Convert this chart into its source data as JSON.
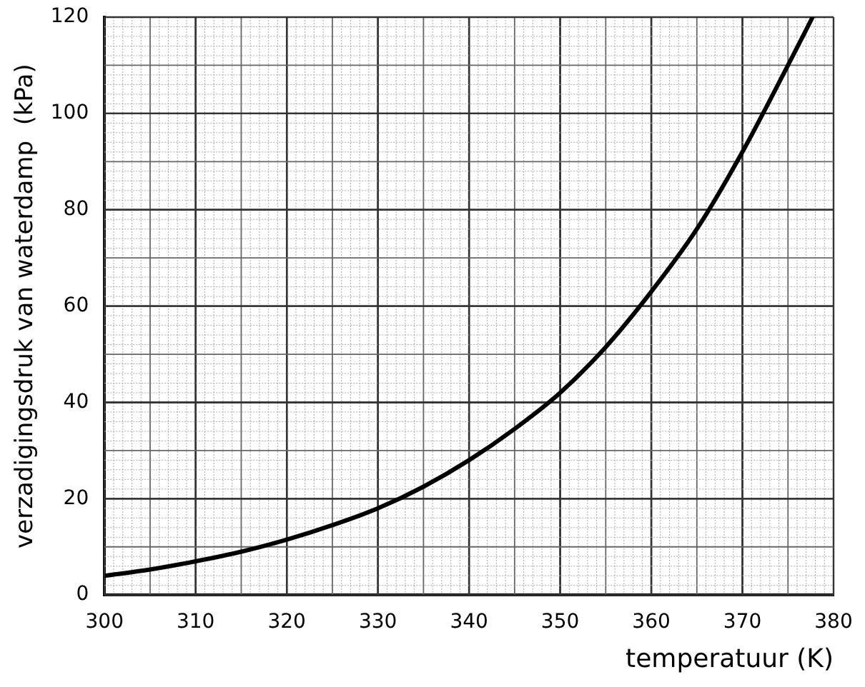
{
  "chart_data": {
    "type": "line",
    "xlabel": "temperatuur (K)",
    "ylabel": "verzadigingsdruk van waterdamp  (kPa)",
    "x": [
      300,
      305,
      310,
      315,
      320,
      325,
      330,
      335,
      340,
      345,
      350,
      355,
      360,
      365,
      370,
      375,
      377.7
    ],
    "series": [
      {
        "color": "#000000",
        "values": [
          4,
          5.3,
          7,
          9,
          11.5,
          14.5,
          18,
          22.5,
          28,
          34.5,
          42,
          51.5,
          63,
          76,
          92,
          110,
          120
        ]
      }
    ],
    "xlim": [
      300,
      380
    ],
    "xticks": [
      300,
      310,
      320,
      330,
      340,
      350,
      360,
      370,
      380
    ],
    "ylim": [
      0,
      120
    ],
    "yticks": [
      0,
      20,
      40,
      60,
      80,
      100,
      120
    ],
    "grid": true,
    "marker": "none",
    "line_style": "solid"
  }
}
